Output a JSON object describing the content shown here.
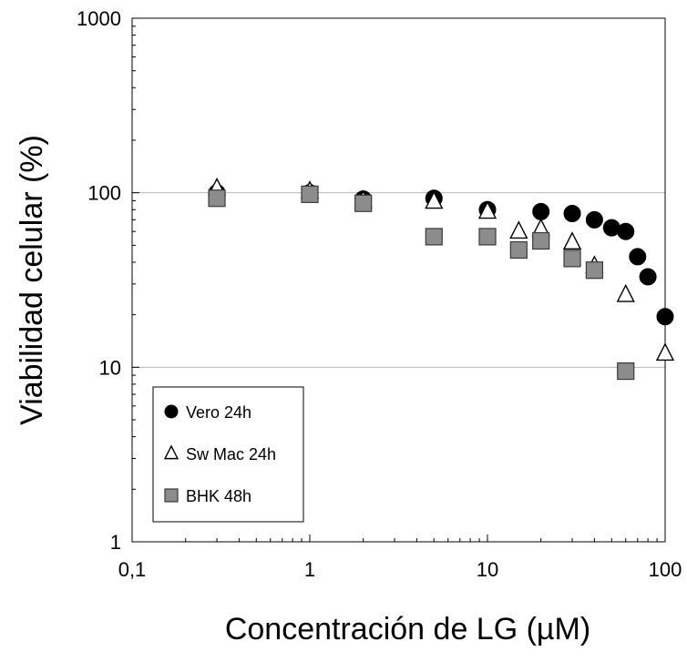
{
  "chart_data": {
    "type": "scatter",
    "title": "",
    "xlabel": "Concentración de LG (µM)",
    "ylabel": "Viabilidad celular (%)",
    "x_scale": "log",
    "y_scale": "log",
    "xlim": [
      0.1,
      100
    ],
    "ylim": [
      1,
      1000
    ],
    "x_ticks": [
      "0,1",
      "1",
      "10",
      "100"
    ],
    "y_ticks": [
      "1",
      "10",
      "100",
      "1000"
    ],
    "grid": "horizontal major gridlines",
    "legend_position": "bottom-left",
    "series": [
      {
        "name": "Vero 24h",
        "marker": "circle",
        "color": "#000000",
        "points": [
          [
            0.3,
            100
          ],
          [
            1,
            100
          ],
          [
            2,
            92
          ],
          [
            5,
            93
          ],
          [
            10,
            80
          ],
          [
            20,
            78
          ],
          [
            30,
            76
          ],
          [
            40,
            70
          ],
          [
            50,
            63
          ],
          [
            60,
            60
          ],
          [
            70,
            43
          ],
          [
            80,
            33
          ],
          [
            100,
            19.5
          ]
        ]
      },
      {
        "name": "Sw Mac 24h",
        "marker": "triangle",
        "color": "#ffffff",
        "points": [
          [
            0.3,
            106
          ],
          [
            1,
            102
          ],
          [
            2,
            90
          ],
          [
            5,
            89
          ],
          [
            10,
            78
          ],
          [
            15,
            60
          ],
          [
            20,
            62
          ],
          [
            30,
            52
          ],
          [
            40,
            38
          ],
          [
            60,
            26
          ],
          [
            100,
            12
          ]
        ]
      },
      {
        "name": "BHK 48h",
        "marker": "square",
        "color": "#808080",
        "points": [
          [
            0.3,
            93
          ],
          [
            1,
            98
          ],
          [
            2,
            87
          ],
          [
            5,
            56
          ],
          [
            10,
            56
          ],
          [
            15,
            47
          ],
          [
            20,
            53
          ],
          [
            30,
            42
          ],
          [
            40,
            36
          ],
          [
            60,
            9.5
          ]
        ]
      }
    ]
  }
}
